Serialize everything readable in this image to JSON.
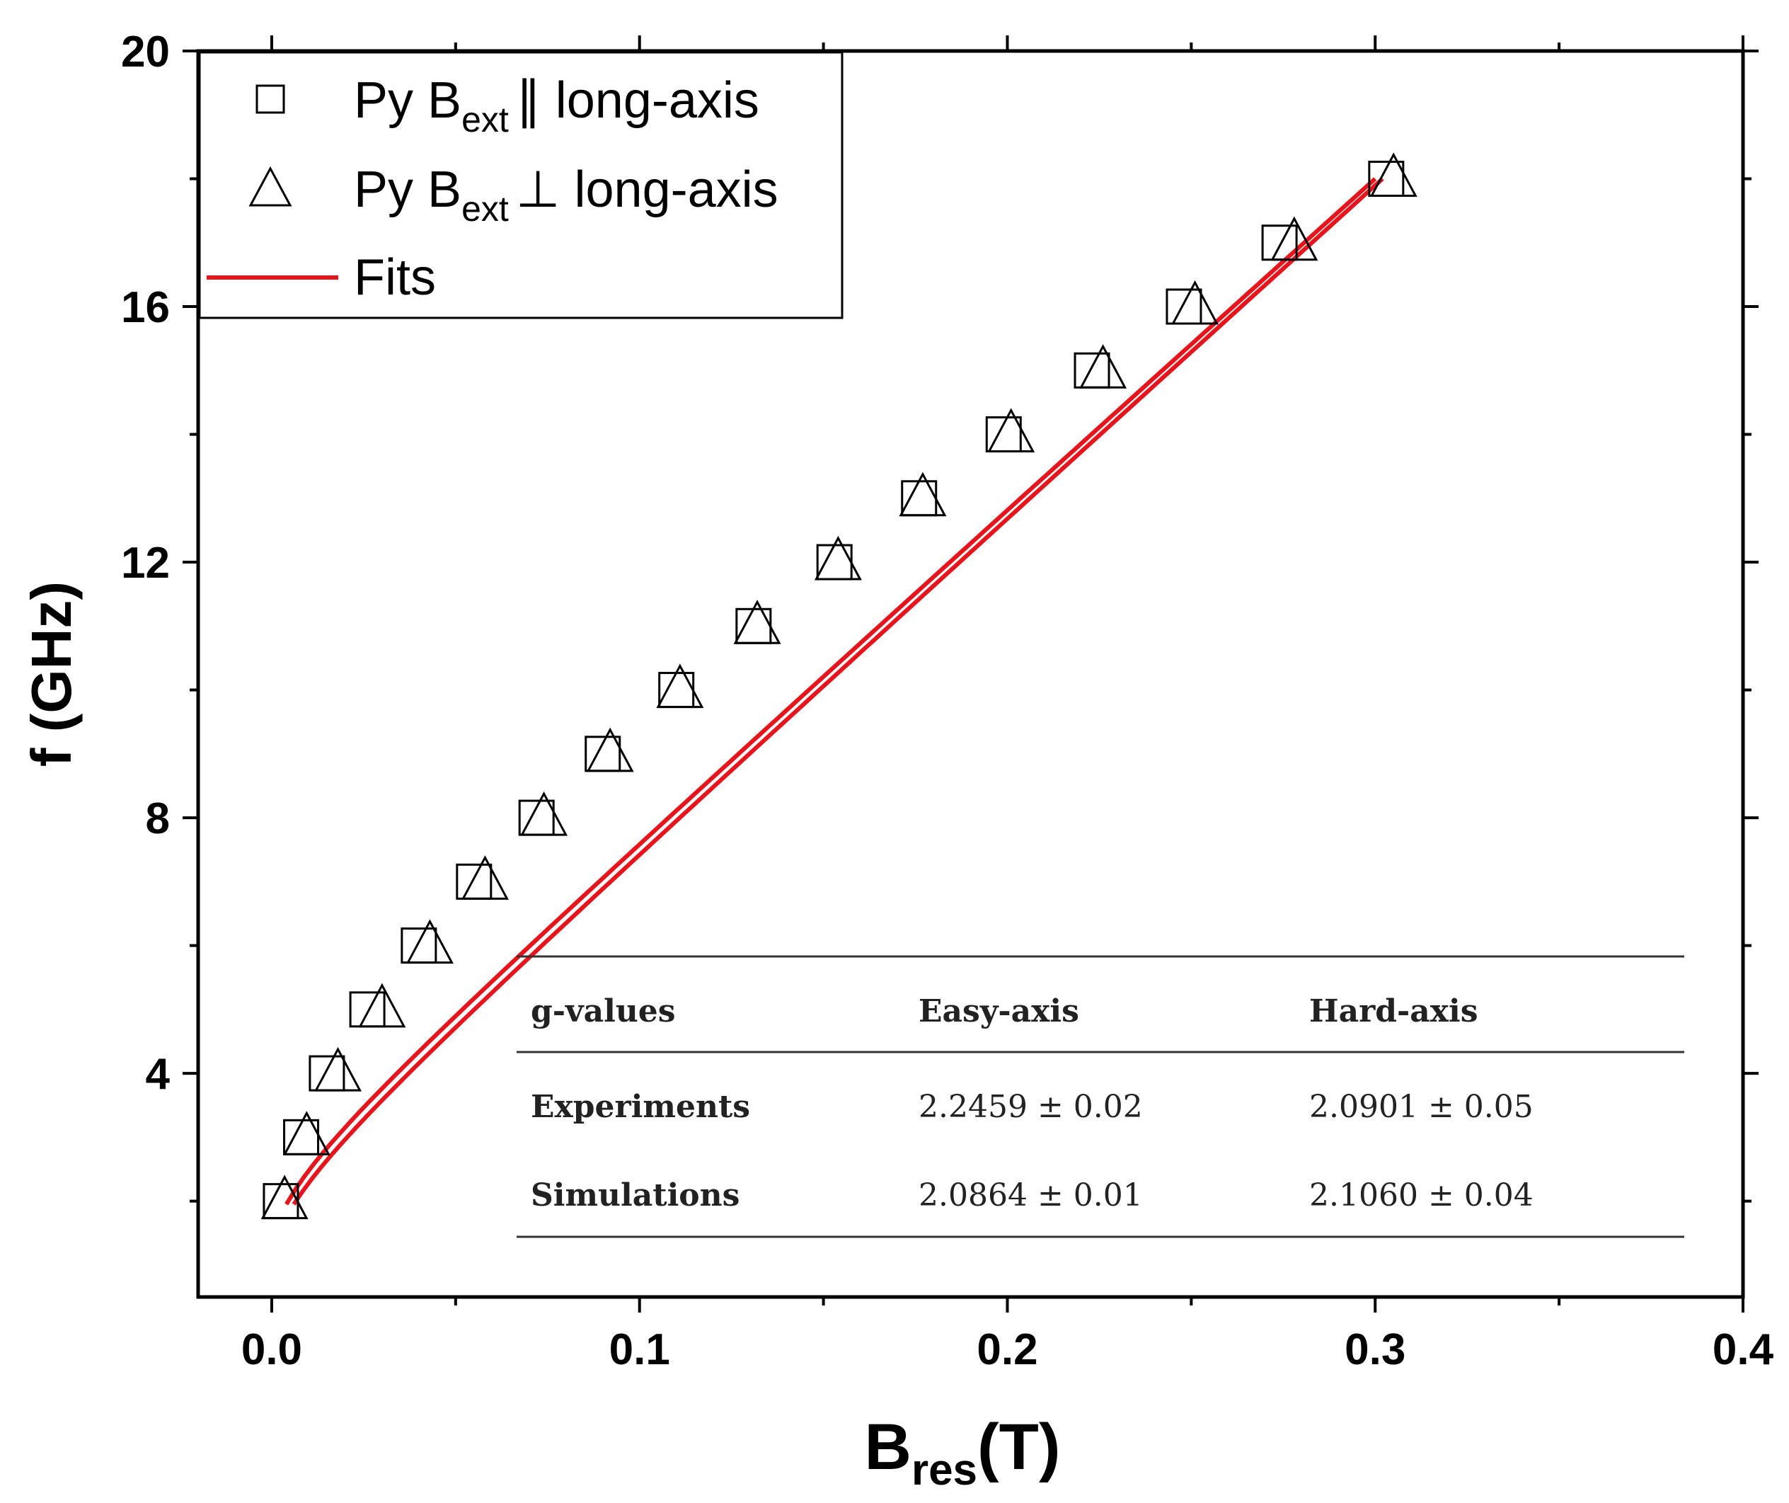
{
  "chart_data": {
    "type": "line",
    "xlabel": "B",
    "xlabel_sub": "res",
    "xlabel_unit": "(T)",
    "ylabel": "f (GHz)",
    "xlim": [
      -0.02,
      0.4
    ],
    "ylim": [
      0.5,
      20
    ],
    "x_ticks": [
      0.0,
      0.1,
      0.2,
      0.3,
      0.4
    ],
    "x_tick_labels": [
      "0.0",
      "0.1",
      "0.2",
      "0.3",
      "0.4"
    ],
    "y_ticks": [
      4,
      8,
      12,
      16,
      20
    ],
    "y_tick_labels": [
      "4",
      "8",
      "12",
      "16",
      "20"
    ],
    "legend_position": "top-left",
    "legend": {
      "series1": {
        "prefix": "Py B",
        "sub": "ext",
        "suffix": "∥  long-axis"
      },
      "series2": {
        "prefix": "Py B",
        "sub": "ext",
        "suffix": "⊥ long-axis"
      },
      "fits": "Fits"
    },
    "series": [
      {
        "name": "Py Bext ∥ long-axis",
        "marker": "square",
        "x": [
          0.0025,
          0.008,
          0.015,
          0.026,
          0.04,
          0.055,
          0.072,
          0.09,
          0.11,
          0.131,
          0.153,
          0.176,
          0.199,
          0.223,
          0.248,
          0.274,
          0.303
        ],
        "y": [
          2,
          3,
          4,
          5,
          6,
          7,
          8,
          9,
          10,
          11,
          12,
          13,
          14,
          15,
          16,
          17,
          18
        ]
      },
      {
        "name": "Py Bext ⊥ long-axis",
        "marker": "triangle",
        "x": [
          0.0035,
          0.0095,
          0.018,
          0.03,
          0.043,
          0.058,
          0.074,
          0.092,
          0.111,
          0.132,
          0.154,
          0.177,
          0.201,
          0.226,
          0.251,
          0.278,
          0.305
        ],
        "y": [
          2,
          3,
          4,
          5,
          6,
          7,
          8,
          9,
          10,
          11,
          12,
          13,
          14,
          15,
          16,
          17,
          18
        ]
      }
    ],
    "fits": [
      {
        "name": "Fit easy-axis",
        "color": "#e8141c",
        "x_start": 0.004,
        "x_end": 0.3,
        "y_start": 1.95,
        "y_end": 18.0
      },
      {
        "name": "Fit hard-axis",
        "color": "#e8141c",
        "x_start": 0.006,
        "x_end": 0.302,
        "y_start": 1.95,
        "y_end": 18.0
      }
    ],
    "table": {
      "headers": [
        "g-values",
        "Easy-axis",
        "Hard-axis"
      ],
      "rows": [
        [
          "Experiments",
          "2.2459 ± 0.02",
          "2.0901 ± 0.05"
        ],
        [
          "Simulations",
          "2.0864 ± 0.01",
          "2.1060 ± 0.04"
        ]
      ]
    }
  },
  "colors": {
    "fit": "#e8141c",
    "axis": "#000000"
  }
}
